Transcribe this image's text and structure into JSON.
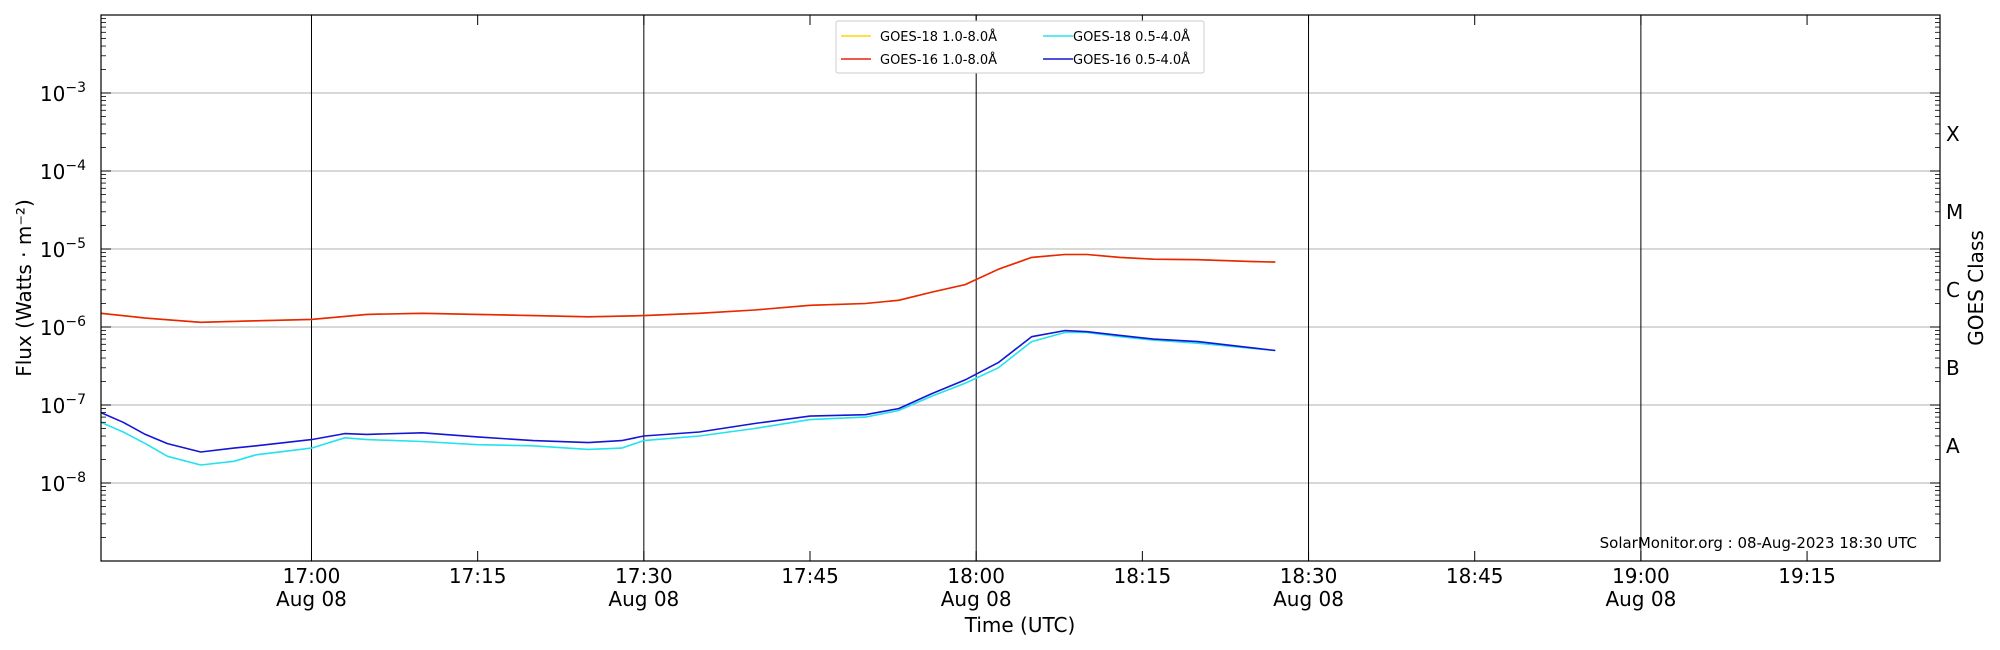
{
  "chart_data": {
    "type": "line",
    "xlabel": "Time (UTC)",
    "ylabel": "Flux (Watts · m⁻²)",
    "right_axis_label": "GOES Class",
    "y_scale": "log",
    "ylim": [
      "1e-9",
      "1e-2"
    ],
    "xlim": [
      "2023-08-08 16:41",
      "2023-08-08 19:27"
    ],
    "grid": "horizontal",
    "legend_position": "top-center",
    "x_tick_labels": [
      {
        "time": "17:00",
        "date": "Aug 08"
      },
      {
        "time": "17:15",
        "date": ""
      },
      {
        "time": "17:30",
        "date": "Aug 08"
      },
      {
        "time": "17:45",
        "date": ""
      },
      {
        "time": "18:00",
        "date": "Aug 08"
      },
      {
        "time": "18:15",
        "date": ""
      },
      {
        "time": "18:30",
        "date": "Aug 08"
      },
      {
        "time": "18:45",
        "date": ""
      },
      {
        "time": "19:00",
        "date": "Aug 08"
      },
      {
        "time": "19:15",
        "date": ""
      }
    ],
    "y_tick_labels": [
      {
        "base": "10",
        "exp": "−8",
        "value": 1e-08
      },
      {
        "base": "10",
        "exp": "−7",
        "value": 1e-07
      },
      {
        "base": "10",
        "exp": "−6",
        "value": 1e-06
      },
      {
        "base": "10",
        "exp": "−5",
        "value": 1e-05
      },
      {
        "base": "10",
        "exp": "−4",
        "value": 0.0001
      },
      {
        "base": "10",
        "exp": "−3",
        "value": 0.001
      }
    ],
    "class_labels": [
      {
        "label": "A",
        "value": 3e-08
      },
      {
        "label": "B",
        "value": 3e-07
      },
      {
        "label": "C",
        "value": 3e-06
      },
      {
        "label": "M",
        "value": 3e-05
      },
      {
        "label": "X",
        "value": 0.0003
      }
    ],
    "credit": "SolarMonitor.org : 08-Aug-2023 18:30 UTC",
    "series": [
      {
        "name": "GOES-18 1.0-8.0Å",
        "color": "#ffd700",
        "x": [
          "16:41",
          "16:45",
          "16:50",
          "16:55",
          "17:00",
          "17:05",
          "17:10",
          "17:15",
          "17:20",
          "17:25",
          "17:30",
          "17:35",
          "17:40",
          "17:45",
          "17:50",
          "17:53",
          "17:56",
          "17:59",
          "18:02",
          "18:05",
          "18:08",
          "18:10",
          "18:13",
          "18:16",
          "18:20",
          "18:25",
          "18:27"
        ],
        "values": [
          1.5e-06,
          1.3e-06,
          1.15e-06,
          1.2e-06,
          1.25e-06,
          1.45e-06,
          1.5e-06,
          1.45e-06,
          1.4e-06,
          1.35e-06,
          1.4e-06,
          1.5e-06,
          1.65e-06,
          1.9e-06,
          2e-06,
          2.2e-06,
          2.8e-06,
          3.5e-06,
          5.5e-06,
          7.8e-06,
          8.5e-06,
          8.5e-06,
          7.8e-06,
          7.4e-06,
          7.3e-06,
          6.9e-06,
          6.8e-06
        ]
      },
      {
        "name": "GOES-16 1.0-8.0Å",
        "color": "#e8250c",
        "x": [
          "16:41",
          "16:45",
          "16:50",
          "16:55",
          "17:00",
          "17:05",
          "17:10",
          "17:15",
          "17:20",
          "17:25",
          "17:30",
          "17:35",
          "17:40",
          "17:45",
          "17:50",
          "17:53",
          "17:56",
          "17:59",
          "18:02",
          "18:05",
          "18:08",
          "18:10",
          "18:13",
          "18:16",
          "18:20",
          "18:25",
          "18:27"
        ],
        "values": [
          1.5e-06,
          1.3e-06,
          1.15e-06,
          1.2e-06,
          1.25e-06,
          1.45e-06,
          1.5e-06,
          1.45e-06,
          1.4e-06,
          1.35e-06,
          1.4e-06,
          1.5e-06,
          1.65e-06,
          1.9e-06,
          2e-06,
          2.2e-06,
          2.8e-06,
          3.5e-06,
          5.5e-06,
          7.8e-06,
          8.5e-06,
          8.5e-06,
          7.8e-06,
          7.4e-06,
          7.3e-06,
          6.9e-06,
          6.8e-06
        ]
      },
      {
        "name": "GOES-18 0.5-4.0Å",
        "color": "#22e3ee",
        "x": [
          "16:41",
          "16:43",
          "16:45",
          "16:47",
          "16:50",
          "16:53",
          "16:55",
          "17:00",
          "17:03",
          "17:05",
          "17:10",
          "17:15",
          "17:20",
          "17:25",
          "17:28",
          "17:30",
          "17:35",
          "17:40",
          "17:45",
          "17:50",
          "17:53",
          "17:56",
          "17:59",
          "18:02",
          "18:05",
          "18:08",
          "18:10",
          "18:13",
          "18:16",
          "18:20",
          "18:25",
          "18:27"
        ],
        "values": [
          6e-08,
          4.5e-08,
          3.2e-08,
          2.2e-08,
          1.7e-08,
          1.9e-08,
          2.3e-08,
          2.8e-08,
          3.8e-08,
          3.6e-08,
          3.4e-08,
          3.1e-08,
          3e-08,
          2.7e-08,
          2.8e-08,
          3.5e-08,
          4e-08,
          5e-08,
          6.5e-08,
          7e-08,
          8.5e-08,
          1.3e-07,
          1.9e-07,
          3e-07,
          6.5e-07,
          8.5e-07,
          8.5e-07,
          7.5e-07,
          6.8e-07,
          6.2e-07,
          5.3e-07,
          5e-07
        ]
      },
      {
        "name": "GOES-16 0.5-4.0Å",
        "color": "#1515d6",
        "x": [
          "16:41",
          "16:43",
          "16:45",
          "16:47",
          "16:50",
          "16:53",
          "16:55",
          "17:00",
          "17:03",
          "17:05",
          "17:10",
          "17:15",
          "17:20",
          "17:25",
          "17:28",
          "17:30",
          "17:35",
          "17:40",
          "17:45",
          "17:50",
          "17:53",
          "17:56",
          "17:59",
          "18:02",
          "18:05",
          "18:08",
          "18:10",
          "18:13",
          "18:16",
          "18:20",
          "18:25",
          "18:27"
        ],
        "values": [
          8e-08,
          6e-08,
          4.2e-08,
          3.2e-08,
          2.5e-08,
          2.8e-08,
          3e-08,
          3.6e-08,
          4.3e-08,
          4.2e-08,
          4.4e-08,
          3.9e-08,
          3.5e-08,
          3.3e-08,
          3.5e-08,
          4e-08,
          4.5e-08,
          5.8e-08,
          7.2e-08,
          7.5e-08,
          9e-08,
          1.4e-07,
          2.1e-07,
          3.5e-07,
          7.5e-07,
          9e-07,
          8.7e-07,
          7.8e-07,
          7e-07,
          6.5e-07,
          5.4e-07,
          5e-07
        ]
      }
    ]
  }
}
